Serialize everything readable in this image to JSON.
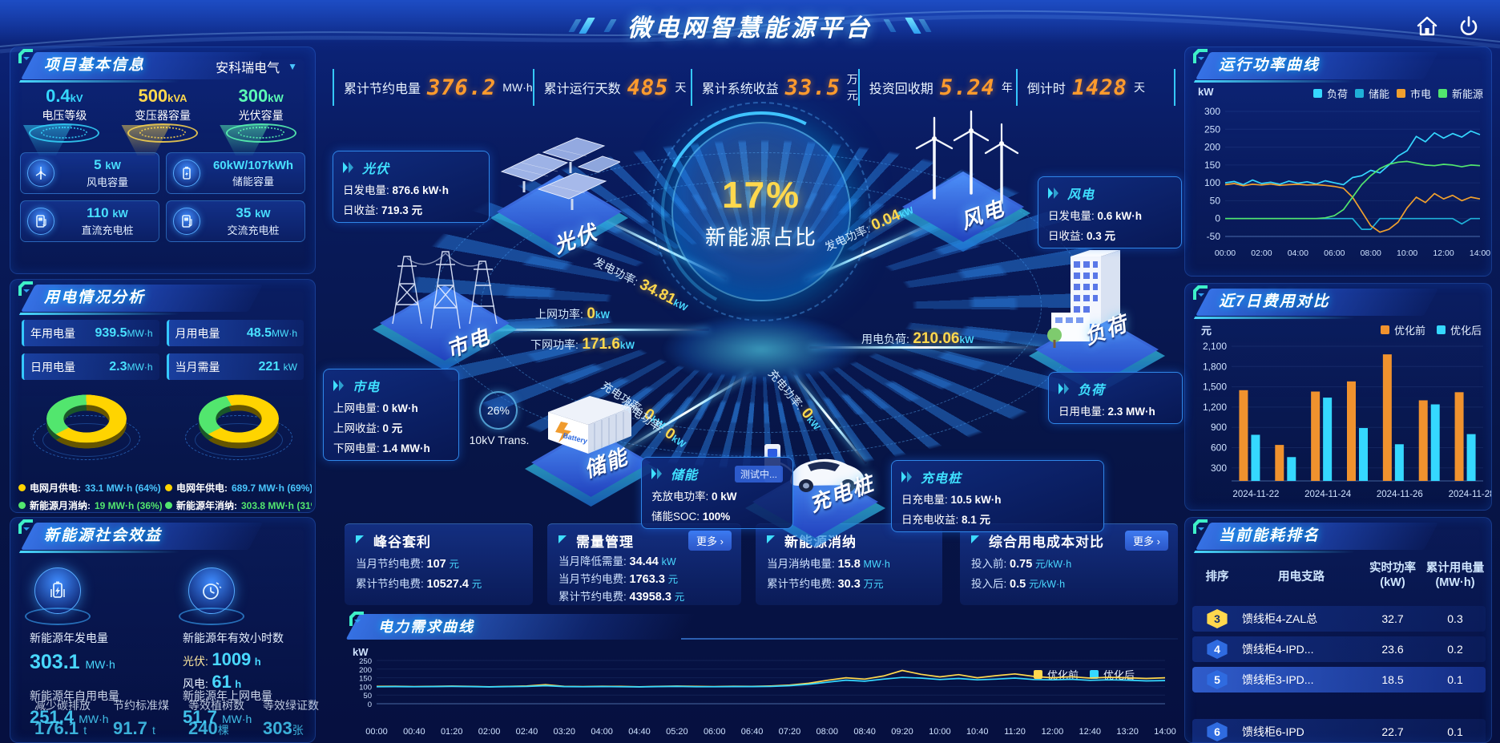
{
  "header": {
    "title": "微电网智慧能源平台"
  },
  "kpis": [
    {
      "label": "累计节约电量",
      "value": "376.2",
      "unit": "MW·h"
    },
    {
      "label": "累计运行天数",
      "value": "485",
      "unit": "天"
    },
    {
      "label": "累计系统收益",
      "value": "33.5",
      "unit": "万元"
    },
    {
      "label": "投资回收期",
      "value": "5.24",
      "unit": "年"
    },
    {
      "label": "倒计时",
      "value": "1428",
      "unit": "天"
    }
  ],
  "project": {
    "title": "项目基本信息",
    "company": "安科瑞电气",
    "cones": [
      {
        "value": "0.4",
        "unit": "kV",
        "label": "电压等级"
      },
      {
        "value": "500",
        "unit": "kVA",
        "label": "变压器容量"
      },
      {
        "value": "300",
        "unit": "kW",
        "label": "光伏容量"
      }
    ],
    "cards": [
      {
        "value": "5",
        "unit": "kW",
        "label": "风电容量"
      },
      {
        "value": "60kW/107kWh",
        "unit": "",
        "label": "储能容量"
      },
      {
        "value": "110",
        "unit": "kW",
        "label": "直流充电桩"
      },
      {
        "value": "35",
        "unit": "kW",
        "label": "交流充电桩"
      }
    ]
  },
  "usage": {
    "title": "用电情况分析",
    "stats": [
      {
        "label": "年用电量",
        "value": "939.5",
        "unit": "MW·h"
      },
      {
        "label": "月用电量",
        "value": "48.5",
        "unit": "MW·h"
      },
      {
        "label": "日用电量",
        "value": "2.3",
        "unit": "MW·h"
      },
      {
        "label": "当月需量",
        "value": "221",
        "unit": "kW"
      }
    ],
    "donut_month": {
      "grid_label": "电网月供电:",
      "grid_value": "33.1 MW·h (64%)",
      "renew_label": "新能源月消纳:",
      "renew_value": "19 MW·h (36%)",
      "grid_pct": 64
    },
    "donut_year": {
      "grid_label": "电网年供电:",
      "grid_value": "689.7 MW·h (69%)",
      "renew_label": "新能源年消纳:",
      "renew_value": "303.8 MW·h (31%)",
      "grid_pct": 69
    },
    "colors": {
      "grid": "#ffd400",
      "renew": "#52e66e"
    }
  },
  "benefit": {
    "title": "新能源社会效益",
    "gen_label": "新能源年发电量",
    "gen_value": "303.1",
    "gen_unit": "MW·h",
    "hours_label": "新能源年有效小时数",
    "pv_label": "光伏:",
    "pv_value": "1009",
    "pv_unit": "h",
    "wind_label": "风电:",
    "wind_value": "61",
    "wind_unit": "h",
    "self_label": "新能源年自用电量",
    "self_value": "251.4",
    "self_unit": "MW·h",
    "export_label": "新能源年上网电量",
    "export_value": "51.7",
    "export_unit": "MW·h",
    "co2_label": "减少碳排放",
    "co2_value": "176.1",
    "co2_unit": "t",
    "coal_label": "节约标准煤",
    "coal_value": "91.7",
    "coal_unit": "t",
    "trees_label": "等效植树数",
    "trees_value": "240",
    "trees_unit": "棵",
    "certs_label": "等效绿证数",
    "certs_value": "303",
    "certs_unit": "张"
  },
  "diagram": {
    "center_value": "17%",
    "center_label": "新能源占比",
    "nodes": {
      "pv": "光伏",
      "wind": "风电",
      "grid": "市电",
      "storage": "储能",
      "charger": "充电桩",
      "load": "负荷"
    },
    "flows": {
      "pv": {
        "label": "发电功率:",
        "value": "34.81",
        "unit": "kW"
      },
      "grid_up": {
        "label": "上网功率:",
        "value": "0",
        "unit": "kW"
      },
      "grid_down": {
        "label": "下网功率:",
        "value": "171.6",
        "unit": "kW"
      },
      "wind": {
        "label": "发电功率:",
        "value": "0.04",
        "unit": "kW"
      },
      "load": {
        "label": "用电负荷:",
        "value": "210.06",
        "unit": "kW"
      },
      "charge": {
        "label": "充电功率:",
        "value": "0",
        "unit": "kW"
      },
      "discharge": {
        "label": "放电功率:",
        "value": "0",
        "unit": "kW"
      },
      "charger": {
        "label": "充电功率:",
        "value": "0",
        "unit": "kW"
      }
    },
    "transformer": {
      "pct": "26%",
      "label": "10kV Trans."
    },
    "battery_text": "Battery",
    "boxes": {
      "pv": {
        "title": "光伏",
        "r1l": "日发电量:",
        "r1v": "876.6 kW·h",
        "r2l": "日收益:",
        "r2v": "719.3 元"
      },
      "wind": {
        "title": "风电",
        "r1l": "日发电量:",
        "r1v": "0.6 kW·h",
        "r2l": "日收益:",
        "r2v": "0.3 元"
      },
      "grid": {
        "title": "市电",
        "r1l": "上网电量:",
        "r1v": "0 kW·h",
        "r2l": "上网收益:",
        "r2v": "0 元",
        "r3l": "下网电量:",
        "r3v": "1.4 MW·h"
      },
      "storage": {
        "title": "储能",
        "badge": "测试中...",
        "r1l": "充放电功率:",
        "r1v": "0 kW",
        "r2l": "储能SOC:",
        "r2v": "100%"
      },
      "charger": {
        "title": "充电桩",
        "r1l": "日充电量:",
        "r1v": "10.5 kW·h",
        "r2l": "日充电收益:",
        "r2v": "8.1 元"
      },
      "load": {
        "title": "负荷",
        "r1l": "日用电量:",
        "r1v": "2.3 MW·h"
      }
    }
  },
  "cards": [
    {
      "title": "峰谷套利",
      "rows": [
        {
          "l": "当月节约电费:",
          "v": "107",
          "u": "元"
        },
        {
          "l": "累计节约电费:",
          "v": "10527.4",
          "u": "元"
        }
      ]
    },
    {
      "title": "需量管理",
      "more": "更多",
      "rows": [
        {
          "l": "当月降低需量:",
          "v": "34.44",
          "u": "kW"
        },
        {
          "l": "当月节约电费:",
          "v": "1763.3",
          "u": "元"
        },
        {
          "l": "累计节约电费:",
          "v": "43958.3",
          "u": "元"
        }
      ]
    },
    {
      "title": "新能源消纳",
      "rows": [
        {
          "l": "当月消纳电量:",
          "v": "15.8",
          "u": "MW·h"
        },
        {
          "l": "累计节约电费:",
          "v": "30.3",
          "u": "万元"
        }
      ]
    },
    {
      "title": "综合用电成本对比",
      "more": "更多",
      "rows": [
        {
          "l": "投入前:",
          "v": "0.75",
          "u": "元/kW·h"
        },
        {
          "l": "投入后:",
          "v": "0.5",
          "u": "元/kW·h"
        }
      ]
    }
  ],
  "ranking": {
    "title": "当前能耗排名",
    "col_rank": "排序",
    "col_branch": "用电支路",
    "col_power_1": "实时功率",
    "col_power_2": "(kW)",
    "col_energy_1": "累计用电量",
    "col_energy_2": "(MW·h)",
    "rows": [
      {
        "rank": "3",
        "branch": "馈线柜4-ZAL总",
        "power": "32.7",
        "energy": "0.3"
      },
      {
        "rank": "4",
        "branch": "馈线柜4-IPD...",
        "power": "23.6",
        "energy": "0.2"
      },
      {
        "rank": "5",
        "branch": "馈线柜3-IPD...",
        "power": "18.5",
        "energy": "0.1"
      },
      {
        "rank": "6",
        "branch": "馈线柜6-IPD",
        "power": "22.7",
        "energy": "0.1"
      }
    ]
  },
  "chart_data": [
    {
      "id": "svg-power",
      "type": "line",
      "title": "运行功率曲线",
      "ylabel": "kW",
      "ylim": [
        -50,
        300
      ],
      "yticks": [
        300,
        250,
        200,
        150,
        100,
        50,
        0,
        -50
      ],
      "xticks": [
        "00:00",
        "02:00",
        "04:00",
        "06:00",
        "08:00",
        "10:00",
        "12:00",
        "14:00"
      ],
      "legend_position": "top",
      "series": [
        {
          "name": "负荷",
          "color": "#35d8ff",
          "values": [
            100,
            104,
            95,
            108,
            98,
            102,
            96,
            105,
            99,
            103,
            97,
            106,
            100,
            95,
            115,
            120,
            135,
            128,
            150,
            175,
            190,
            230,
            215,
            240,
            225,
            238,
            228,
            245,
            235
          ]
        },
        {
          "name": "储能",
          "color": "#1fb0d8",
          "values": [
            0,
            0,
            0,
            0,
            0,
            0,
            0,
            0,
            0,
            0,
            0,
            0,
            0,
            0,
            0,
            -30,
            -30,
            0,
            0,
            0,
            0,
            0,
            0,
            0,
            0,
            0,
            -15,
            0,
            0
          ]
        },
        {
          "name": "市电",
          "color": "#f0a02e",
          "values": [
            95,
            98,
            92,
            96,
            94,
            97,
            93,
            95,
            96,
            94,
            95,
            93,
            90,
            85,
            60,
            20,
            -20,
            -38,
            -30,
            -10,
            30,
            60,
            45,
            70,
            55,
            65,
            50,
            60,
            55
          ]
        },
        {
          "name": "新能源",
          "color": "#52e66e",
          "values": [
            0,
            0,
            0,
            0,
            0,
            0,
            0,
            0,
            0,
            0,
            0,
            2,
            8,
            25,
            60,
            95,
            120,
            140,
            152,
            158,
            160,
            155,
            150,
            148,
            152,
            150,
            145,
            150,
            148
          ]
        }
      ]
    },
    {
      "id": "svg-cost",
      "type": "bar",
      "title": "近7日费用对比",
      "ylabel": "元",
      "ylim": [
        250,
        2100
      ],
      "yticks": [
        "2,100",
        "1,800",
        "1,500",
        "1,200",
        "900",
        "600",
        "300"
      ],
      "categories": [
        "2024-11-22",
        "2024-11-23",
        "2024-11-24",
        "2024-11-25",
        "2024-11-26",
        "2024-11-27",
        "2024-11-28"
      ],
      "xtick_labels": [
        "2024-11-22",
        "2024-11-24",
        "2024-11-26",
        "2024-11-28"
      ],
      "legend_position": "top-right",
      "series": [
        {
          "name": "优化前",
          "color": "#f0922e",
          "values": [
            1450,
            640,
            1430,
            1580,
            1980,
            1300,
            1420
          ]
        },
        {
          "name": "优化后",
          "color": "#35d8ff",
          "values": [
            790,
            460,
            1340,
            890,
            650,
            1240,
            800
          ]
        }
      ]
    },
    {
      "id": "svg-demand",
      "type": "line",
      "title": "电力需求曲线",
      "ylabel": "kW",
      "ylim": [
        0,
        250
      ],
      "yticks": [
        250,
        200,
        150,
        100,
        50,
        0
      ],
      "xticks": [
        "00:00",
        "00:40",
        "01:20",
        "02:00",
        "02:40",
        "03:20",
        "04:00",
        "04:40",
        "05:20",
        "06:00",
        "06:40",
        "07:20",
        "08:00",
        "08:40",
        "09:20",
        "10:00",
        "10:40",
        "11:20",
        "12:00",
        "12:40",
        "13:20",
        "14:00"
      ],
      "legend_position": "top-right",
      "series": [
        {
          "name": "优化前",
          "color": "#ffd84d",
          "values": [
            100,
            101,
            99,
            100,
            102,
            100,
            98,
            100,
            103,
            110,
            100,
            99,
            101,
            100,
            98,
            100,
            102,
            100,
            99,
            101,
            100,
            103,
            108,
            118,
            135,
            150,
            142,
            160,
            192,
            170,
            155,
            168,
            150,
            162,
            172,
            158,
            150,
            156,
            148,
            153,
            150,
            146,
            150
          ]
        },
        {
          "name": "优化后",
          "color": "#35d8ff",
          "values": [
            98,
            99,
            98,
            99,
            100,
            99,
            97,
            99,
            100,
            104,
            99,
            98,
            99,
            98,
            97,
            99,
            100,
            98,
            98,
            99,
            99,
            100,
            104,
            112,
            124,
            136,
            130,
            142,
            152,
            148,
            140,
            146,
            138,
            142,
            148,
            140,
            138,
            141,
            135,
            138,
            136,
            132,
            134
          ]
        }
      ]
    }
  ]
}
